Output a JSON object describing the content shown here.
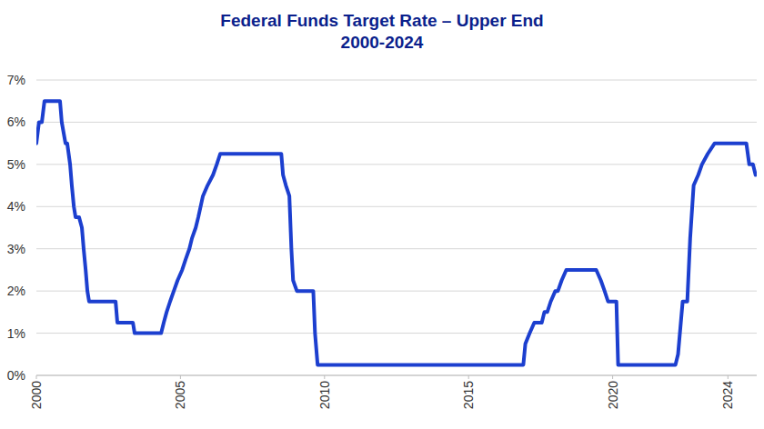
{
  "chart_data": {
    "type": "line",
    "title": "Federal Funds Target Rate – Upper End",
    "subtitle": "2000-2024",
    "color": "#1c3fcf",
    "grid": true,
    "xlim": [
      2000,
      2025
    ],
    "xticks": [
      2000,
      2005,
      2010,
      2015,
      2020,
      2024
    ],
    "ylim": [
      0,
      7
    ],
    "yticks": [
      {
        "value": 0,
        "label": "0%"
      },
      {
        "value": 1,
        "label": "1%"
      },
      {
        "value": 2,
        "label": "2%"
      },
      {
        "value": 3,
        "label": "3%"
      },
      {
        "value": 4,
        "label": "4%"
      },
      {
        "value": 5,
        "label": "5%"
      },
      {
        "value": 6,
        "label": "6%"
      },
      {
        "value": 7,
        "label": "7%"
      }
    ],
    "x": [
      2000.0,
      2000.09,
      2000.19,
      2000.28,
      2000.82,
      2000.88,
      2001.01,
      2001.07,
      2001.17,
      2001.23,
      2001.3,
      2001.36,
      2001.48,
      2001.58,
      2001.64,
      2001.71,
      2001.77,
      2001.83,
      2002.75,
      2002.81,
      2003.35,
      2003.41,
      2004.33,
      2004.42,
      2004.52,
      2004.64,
      2004.77,
      2004.9,
      2005.06,
      2005.18,
      2005.31,
      2005.4,
      2005.53,
      2005.62,
      2005.78,
      2005.94,
      2006.13,
      2006.26,
      2006.38,
      2008.5,
      2008.56,
      2008.66,
      2008.78,
      2008.85,
      2008.91,
      2009.04,
      2009.61,
      2009.67,
      2009.76,
      2016.9,
      2016.97,
      2017.12,
      2017.28,
      2017.54,
      2017.63,
      2017.73,
      2017.85,
      2018.01,
      2018.1,
      2018.23,
      2018.39,
      2019.43,
      2019.59,
      2019.72,
      2019.84,
      2020.13,
      2020.19,
      2022.18,
      2022.27,
      2022.43,
      2022.59,
      2022.69,
      2022.81,
      2022.97,
      2023.1,
      2023.3,
      2023.54,
      2024.64,
      2024.74,
      2024.87,
      2024.96
    ],
    "values": [
      5.5,
      6.0,
      6.0,
      6.5,
      6.5,
      6.0,
      5.5,
      5.5,
      5.0,
      4.5,
      4.0,
      3.75,
      3.75,
      3.5,
      3.0,
      2.5,
      2.0,
      1.75,
      1.75,
      1.25,
      1.25,
      1.0,
      1.0,
      1.25,
      1.5,
      1.75,
      2.0,
      2.25,
      2.5,
      2.75,
      3.0,
      3.25,
      3.5,
      3.75,
      4.25,
      4.5,
      4.75,
      5.0,
      5.25,
      5.25,
      4.75,
      4.5,
      4.25,
      3.0,
      2.25,
      2.0,
      2.0,
      1.0,
      0.25,
      0.25,
      0.75,
      1.0,
      1.25,
      1.25,
      1.5,
      1.5,
      1.75,
      2.0,
      2.0,
      2.25,
      2.5,
      2.5,
      2.25,
      2.0,
      1.75,
      1.75,
      0.25,
      0.25,
      0.5,
      1.75,
      1.75,
      3.25,
      4.5,
      4.75,
      5.0,
      5.25,
      5.5,
      5.5,
      5.0,
      5.0,
      4.75
    ]
  }
}
